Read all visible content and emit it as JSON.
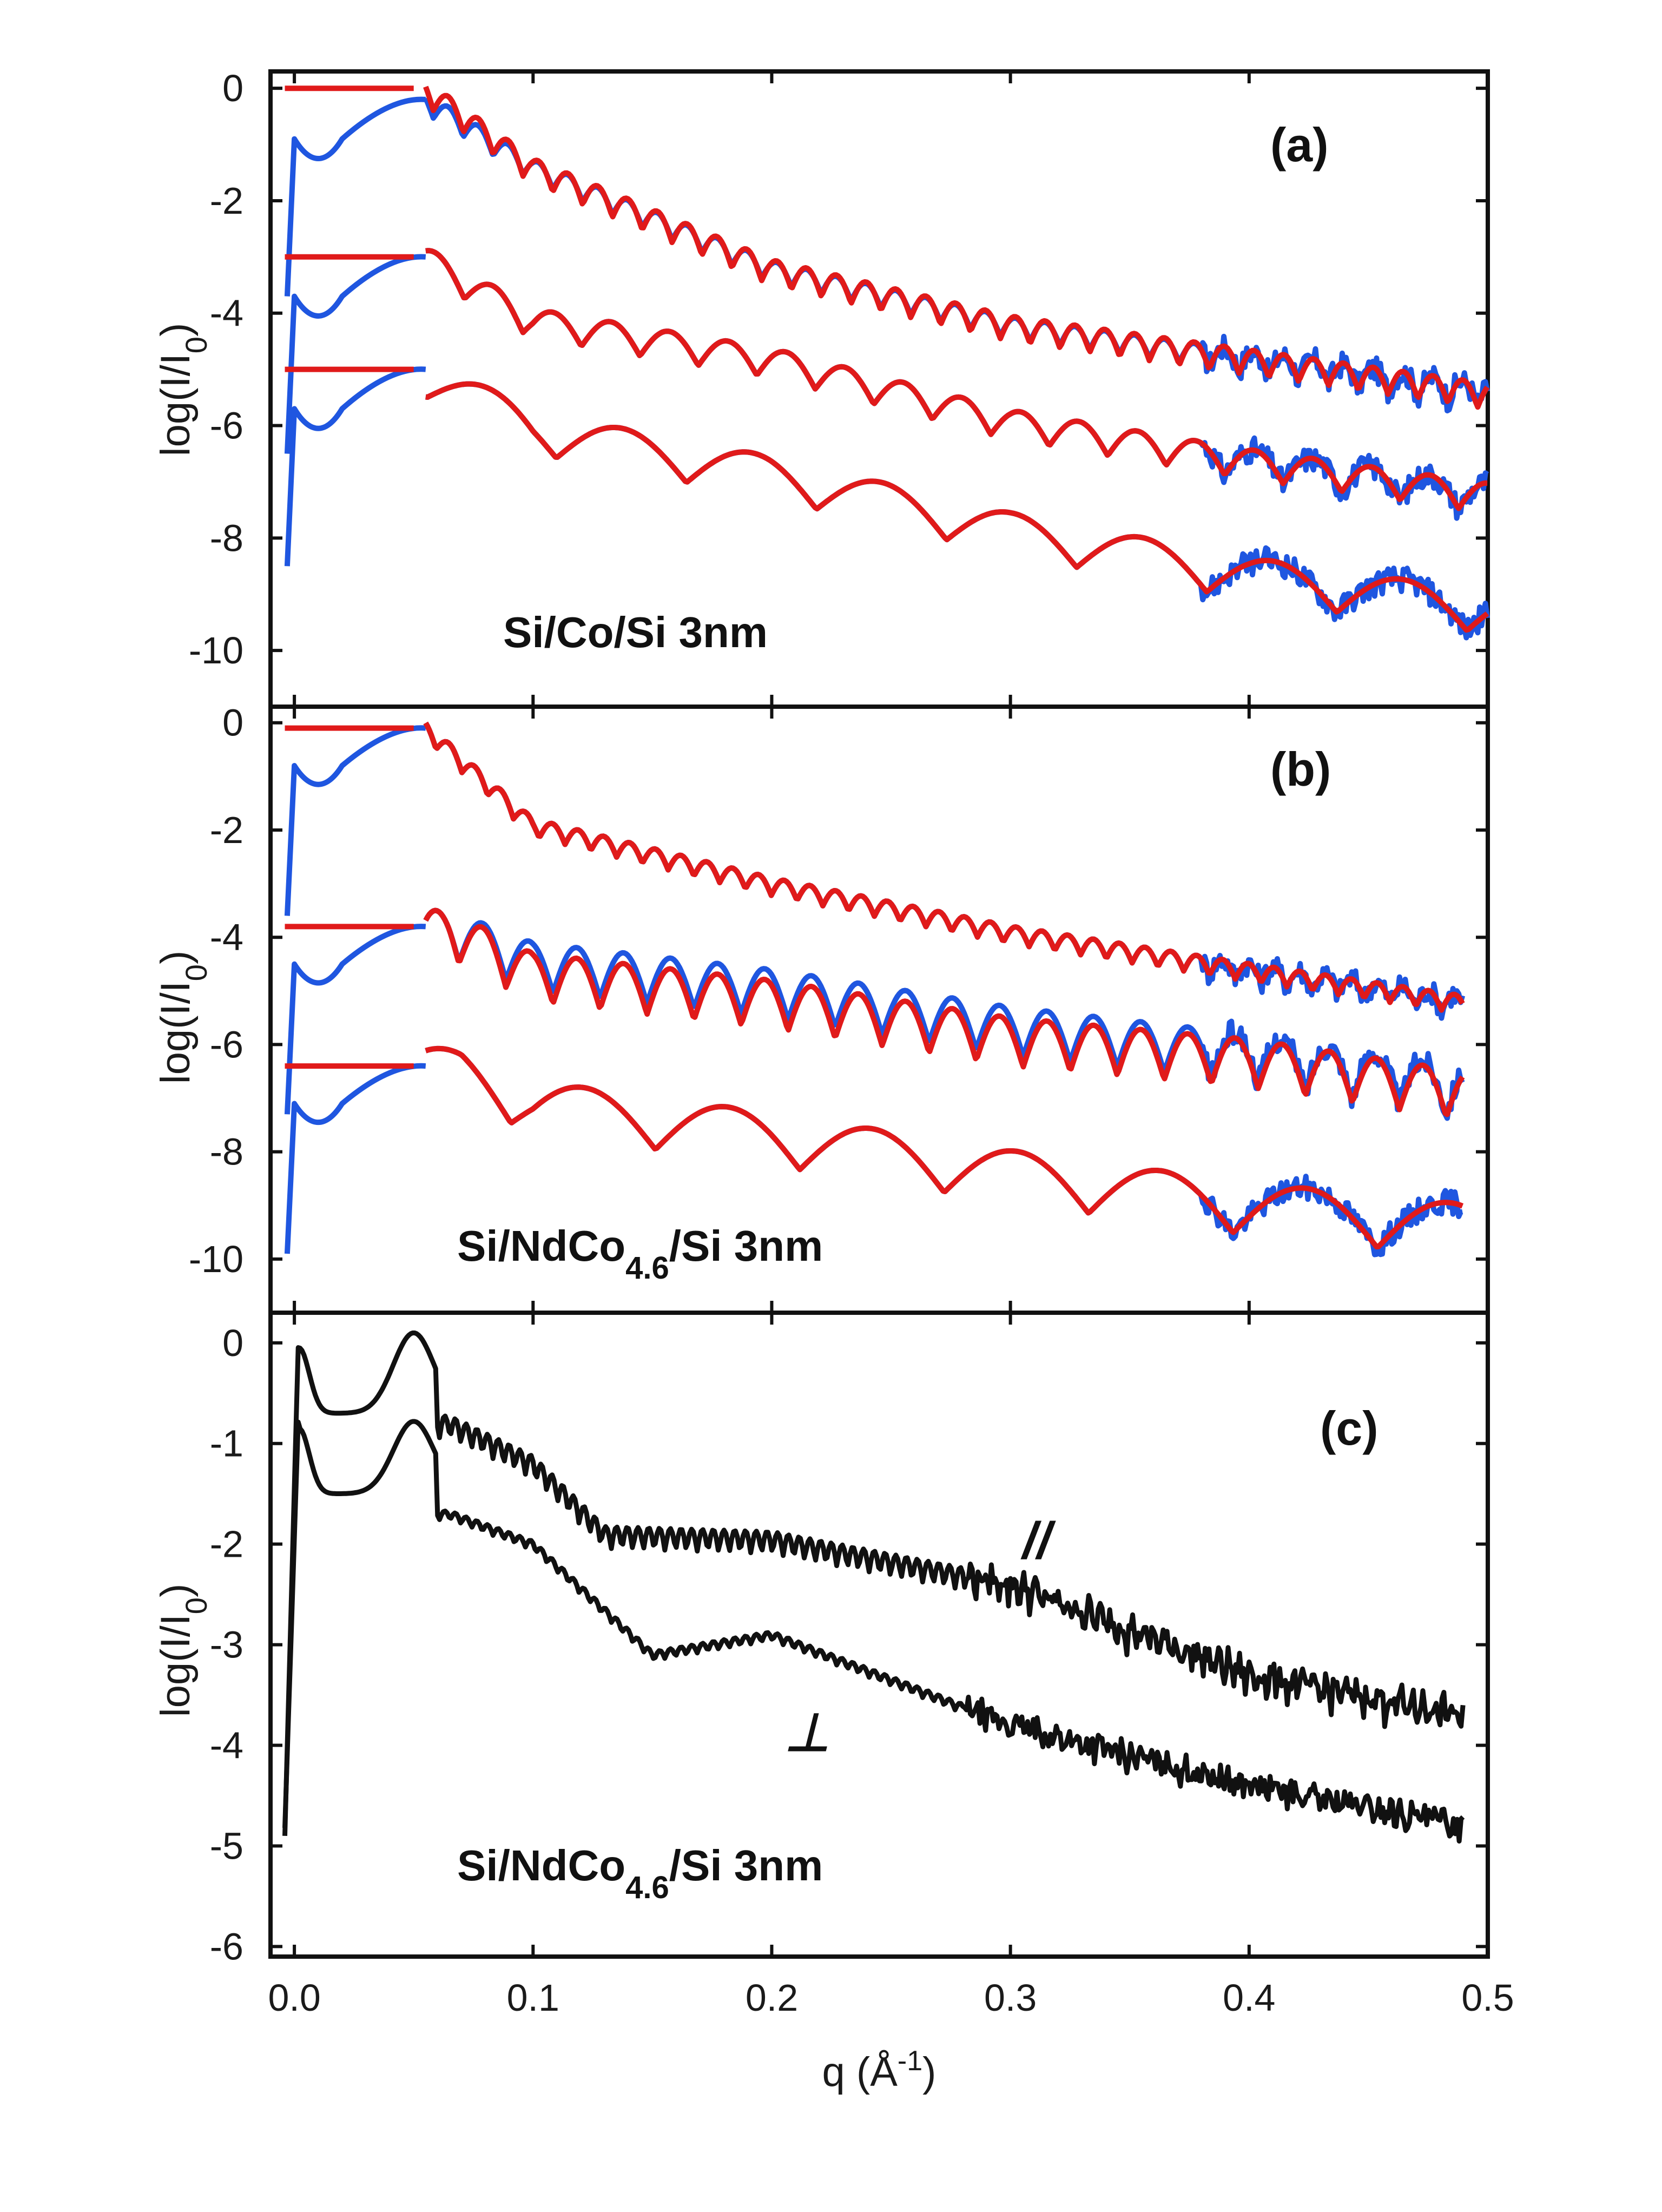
{
  "colors": {
    "measured": "#1f56e0",
    "fit": "#e01a1a",
    "black": "#111111"
  },
  "labels": {
    "ylabel_main": "log(I/I",
    "ylabel_sub": "0",
    "ylabel_close": ")",
    "xlabel_main": "q (Å",
    "xlabel_sup": "-1",
    "xlabel_close": ")",
    "sample_a": "Si/Co/Si 3nm",
    "sample_b_pre": "Si/NdCo",
    "sample_b_sub": "4.6",
    "sample_b_post": "/Si 3nm",
    "sample_c_pre": "Si/NdCo",
    "sample_c_sub": "4.6",
    "sample_c_post": "/Si 3nm",
    "parallel": "//",
    "perpendicular": "⊥"
  },
  "chart_data": [
    {
      "panel": "(a)",
      "type": "line",
      "xlabel": "q (Å-1)",
      "ylabel": "log(I/I0)",
      "xlim": [
        -0.01,
        0.5
      ],
      "ylim": [
        -11,
        0.3
      ],
      "xticks": [
        "0.0",
        "0.1",
        "0.2",
        "0.3",
        "0.4",
        "0.5"
      ],
      "yticks": [
        0,
        -2,
        -4,
        -6,
        -8,
        -10
      ],
      "ytick_labels": [
        "0",
        "-2",
        "-4",
        "-6",
        "-8",
        "-10"
      ],
      "annotation": "Si/Co/Si 3nm",
      "series": [
        {
          "name": "meas-top",
          "color": "measured",
          "offset": 0,
          "period": 0.0125,
          "amp": 0.25,
          "phase": 0.002,
          "bump_start": 0.052,
          "bump_center": 0.045,
          "bump_width": 0.018,
          "bump_height": 1.0,
          "crit_dip": -0.8,
          "peak": 0.0,
          "decay": [
            [
              0.055,
              -0.2
            ],
            [
              0.1,
              -1.4
            ],
            [
              0.2,
              -3.2
            ],
            [
              0.3,
              -4.2
            ],
            [
              0.4,
              -4.8
            ],
            [
              0.5,
              -5.4
            ]
          ],
          "noise_from": 0.42,
          "noise_amp": 0.25,
          "start_level": -0.9
        },
        {
          "name": "fit-top",
          "color": "fit",
          "offset": 0,
          "period": 0.0125,
          "amp": 0.3,
          "phase": 0.002,
          "flat": [
            0.0,
            0.035
          ],
          "gap": [
            0.035,
            0.055
          ],
          "decay": [
            [
              0.055,
              0.0
            ],
            [
              0.1,
              -1.4
            ],
            [
              0.2,
              -3.2
            ],
            [
              0.3,
              -4.2
            ],
            [
              0.4,
              -4.8
            ],
            [
              0.5,
              -5.4
            ]
          ],
          "deep_dips": [
            0.09,
            0.2
          ]
        },
        {
          "name": "meas-mid",
          "color": "measured",
          "offset": -3,
          "period": 0.0245,
          "amp": 0.35,
          "phase": 0.01,
          "decay": [
            [
              0.055,
              -3.0
            ],
            [
              0.1,
              -4.1
            ],
            [
              0.2,
              -4.8
            ],
            [
              0.3,
              -5.9
            ],
            [
              0.4,
              -6.6
            ],
            [
              0.5,
              -7.2
            ]
          ]
        },
        {
          "name": "fit-mid",
          "color": "fit",
          "offset": -3,
          "period": 0.0245,
          "amp": 0.35,
          "phase": 0.01,
          "flat_level": -3.0,
          "decay": [
            [
              0.055,
              -3.0
            ],
            [
              0.1,
              -4.1
            ],
            [
              0.2,
              -4.8
            ],
            [
              0.3,
              -5.9
            ],
            [
              0.4,
              -6.6
            ],
            [
              0.5,
              -7.2
            ]
          ]
        },
        {
          "name": "meas-bottom",
          "color": "measured",
          "offset": -5,
          "period": 0.0545,
          "amp": 0.5,
          "phase": 0.028,
          "decay": [
            [
              0.055,
              -5.0
            ],
            [
              0.1,
              -6.0
            ],
            [
              0.2,
              -6.8
            ],
            [
              0.3,
              -7.8
            ],
            [
              0.4,
              -8.6
            ],
            [
              0.5,
              -9.2
            ]
          ]
        },
        {
          "name": "fit-bottom",
          "color": "fit",
          "offset": -5,
          "period": 0.0545,
          "amp": 0.5,
          "phase": 0.028,
          "flat_level": -5.0,
          "decay": [
            [
              0.055,
              -5.0
            ],
            [
              0.1,
              -6.0
            ],
            [
              0.2,
              -6.8
            ],
            [
              0.3,
              -7.8
            ],
            [
              0.4,
              -8.6
            ],
            [
              0.5,
              -9.2
            ]
          ]
        }
      ]
    },
    {
      "panel": "(b)",
      "type": "line",
      "xlabel": "q (Å-1)",
      "ylabel": "log(I/I0)",
      "xlim": [
        -0.01,
        0.5
      ],
      "ylim": [
        -11,
        0.3
      ],
      "xticks": [
        "0.0",
        "0.1",
        "0.2",
        "0.3",
        "0.4",
        "0.5"
      ],
      "yticks": [
        0,
        -2,
        -4,
        -6,
        -8,
        -10
      ],
      "ytick_labels": [
        "0",
        "-2",
        "-4",
        "-6",
        "-8",
        "-10"
      ],
      "annotation": "Si/NdCo4.6/Si 3nm",
      "series": [
        {
          "name": "meas-top",
          "color": "measured",
          "offset": 0,
          "period": 0.0108,
          "amp": 0.22,
          "decay": [
            [
              0.055,
              -0.1
            ],
            [
              0.1,
              -1.9
            ],
            [
              0.2,
              -3.0
            ],
            [
              0.3,
              -3.9
            ],
            [
              0.4,
              -4.6
            ],
            [
              0.49,
              -5.2
            ]
          ]
        },
        {
          "name": "fit-top",
          "color": "fit",
          "offset": 0,
          "period": 0.0108,
          "amp": 0.22,
          "decay": [
            [
              0.055,
              -0.1
            ],
            [
              0.1,
              -1.9
            ],
            [
              0.2,
              -3.0
            ],
            [
              0.3,
              -3.9
            ],
            [
              0.4,
              -4.6
            ],
            [
              0.49,
              -5.2
            ]
          ]
        },
        {
          "name": "meas-mid",
          "color": "measured",
          "offset": -3,
          "period": 0.0197,
          "amp": 0.6,
          "decay": [
            [
              0.065,
              -3.8
            ],
            [
              0.1,
              -4.4
            ],
            [
              0.2,
              -4.9
            ],
            [
              0.3,
              -5.6
            ],
            [
              0.4,
              -6.1
            ],
            [
              0.49,
              -6.7
            ]
          ]
        },
        {
          "name": "fit-mid",
          "color": "fit",
          "offset": -3,
          "period": 0.0197,
          "amp": 0.6,
          "decay": [
            [
              0.065,
              -3.8
            ],
            [
              0.1,
              -4.6
            ],
            [
              0.2,
              -5.1
            ],
            [
              0.3,
              -5.8
            ],
            [
              0.4,
              -6.2
            ],
            [
              0.49,
              -6.8
            ]
          ]
        },
        {
          "name": "meas-bottom",
          "color": "measured",
          "offset": -6,
          "period": 0.0605,
          "amp": 0.65,
          "decay": [
            [
              0.07,
              -6.4
            ],
            [
              0.1,
              -7.0
            ],
            [
              0.2,
              -7.6
            ],
            [
              0.3,
              -8.3
            ],
            [
              0.4,
              -8.9
            ],
            [
              0.49,
              -9.3
            ]
          ]
        },
        {
          "name": "fit-bottom",
          "color": "fit",
          "offset": -6,
          "period": 0.0605,
          "amp": 0.65,
          "decay": [
            [
              0.07,
              -6.4
            ],
            [
              0.1,
              -7.0
            ],
            [
              0.2,
              -7.6
            ],
            [
              0.3,
              -8.3
            ],
            [
              0.4,
              -8.9
            ],
            [
              0.49,
              -9.3
            ]
          ]
        }
      ]
    },
    {
      "panel": "(c)",
      "type": "line",
      "xlabel": "q (Å-1)",
      "ylabel": "log(I/I0)",
      "xlim": [
        -0.01,
        0.5
      ],
      "ylim": [
        -6.1,
        0.3
      ],
      "xticks": [
        "0.0",
        "0.1",
        "0.2",
        "0.3",
        "0.4",
        "0.5"
      ],
      "yticks": [
        0,
        -1,
        -2,
        -3,
        -4,
        -5,
        -6
      ],
      "ytick_labels": [
        "0",
        "-1",
        "-2",
        "-3",
        "-4",
        "-5",
        "-6"
      ],
      "annotation": "Si/NdCo4.6/Si 3nm",
      "series": [
        {
          "name": "parallel",
          "label": "//",
          "color": "black",
          "offset": 0,
          "period": 0.0045,
          "amp": 0.15,
          "decay": [
            [
              0.065,
              -0.8
            ],
            [
              0.1,
              -1.2
            ],
            [
              0.13,
              -1.9
            ],
            [
              0.2,
              -1.95
            ],
            [
              0.3,
              -2.4
            ],
            [
              0.4,
              -3.3
            ],
            [
              0.49,
              -3.7
            ]
          ]
        },
        {
          "name": "perpendicular",
          "label": "⊥",
          "color": "black",
          "offset": -0.8,
          "period": 0.0045,
          "amp": 0.06,
          "decay": [
            [
              0.065,
              -1.7
            ],
            [
              0.1,
              -2.0
            ],
            [
              0.15,
              -3.1
            ],
            [
              0.2,
              -2.9
            ],
            [
              0.3,
              -3.8
            ],
            [
              0.4,
              -4.4
            ],
            [
              0.49,
              -4.8
            ]
          ]
        }
      ]
    }
  ]
}
